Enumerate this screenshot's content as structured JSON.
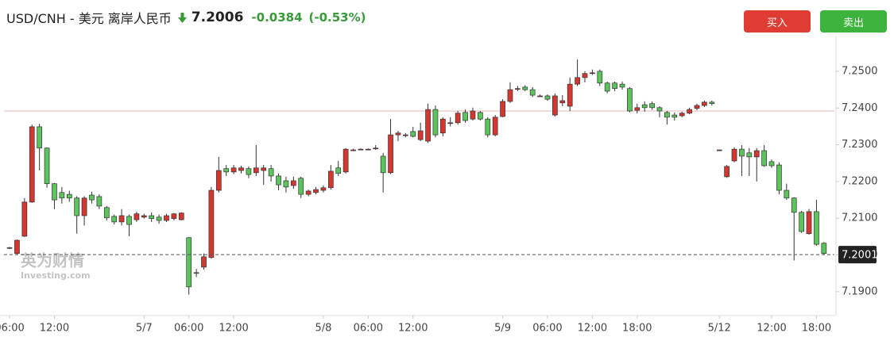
{
  "header": {
    "title": "USD/CNH - 美元 离岸人民币",
    "price": "7.2006",
    "change": "-0.0384",
    "change_pct": "(-0.53%)"
  },
  "buttons": [
    "买入",
    "卖出"
  ],
  "watermark": [
    "英为财情",
    "Investing.com"
  ],
  "chart_data": {
    "type": "candlestick",
    "up_color": "#d4372f",
    "down_color": "#5cc45c",
    "xlim": [
      -0.75,
      110.4
    ],
    "xticks": [
      {
        "value": 0,
        "label": "06:00"
      },
      {
        "value": 6,
        "label": "12:00"
      },
      {
        "value": 18,
        "label": "5/7"
      },
      {
        "value": 24,
        "label": "06:00"
      },
      {
        "value": 30,
        "label": "12:00"
      },
      {
        "value": 42,
        "label": "5/8"
      },
      {
        "value": 48,
        "label": "06:00"
      },
      {
        "value": 54,
        "label": "12:00"
      },
      {
        "value": 66,
        "label": "5/9"
      },
      {
        "value": 72,
        "label": "06:00"
      },
      {
        "value": 78,
        "label": "12:00"
      },
      {
        "value": 84,
        "label": "18:00"
      },
      {
        "value": 95,
        "label": "5/12"
      },
      {
        "value": 102,
        "label": "12:00"
      },
      {
        "value": 108,
        "label": "18:00"
      }
    ],
    "ylim": [
      7.1835,
      7.2597
    ],
    "yticks": [
      {
        "value": 7.19,
        "label": "7.1900"
      },
      {
        "value": 7.2,
        "label": "7.2000"
      },
      {
        "value": 7.21,
        "label": "7.2100"
      },
      {
        "value": 7.22,
        "label": "7.2200"
      },
      {
        "value": 7.23,
        "label": "7.2300"
      },
      {
        "value": 7.24,
        "label": "7.2400"
      },
      {
        "value": 7.25,
        "label": "7.2500"
      }
    ],
    "reference_line": 7.2392,
    "last_price": 7.2001,
    "open": [
      7.202,
      7.2004,
      7.2051,
      7.2144,
      7.2349,
      7.2291,
      7.2194,
      7.217,
      7.2165,
      7.2155,
      7.2107,
      7.2163,
      7.2159,
      7.2129,
      7.2105,
      7.209,
      7.2105,
      7.2096,
      7.2103,
      7.2107,
      7.2103,
      7.2094,
      7.2099,
      7.2096,
      7.2047,
      7.1952,
      7.1967,
      7.1993,
      7.2176,
      7.2235,
      7.2226,
      7.223,
      7.2235,
      7.2224,
      7.223,
      7.2235,
      7.2215,
      7.2202,
      7.2189,
      7.2209,
      7.2165,
      7.217,
      7.2176,
      7.2183,
      7.2237,
      7.2226,
      7.2286,
      7.2288,
      7.2288,
      7.2291,
      7.2269,
      7.2224,
      7.2327,
      7.2327,
      7.2336,
      7.2314,
      7.231,
      7.2396,
      7.2332,
      7.236,
      7.236,
      7.2388,
      7.237,
      7.2388,
      7.237,
      7.2327,
      7.2377,
      7.2418,
      7.2453,
      7.2457,
      7.245,
      7.2433,
      7.2433,
      7.2381,
      7.2414,
      7.2405,
      7.2465,
      7.2483,
      7.2496,
      7.25,
      7.2468,
      7.2468,
      7.2465,
      7.2453,
      7.2394,
      7.2409,
      7.2412,
      7.2401,
      7.2388,
      7.2381,
      7.2379,
      7.2386,
      7.2399,
      7.2407,
      7.2416,
      7.2286,
      7.2213,
      7.2256,
      7.2288,
      7.2278,
      7.2267,
      7.2284,
      7.2254,
      7.2245,
      7.2176,
      7.2155,
      7.2116,
      7.2058,
      7.2118,
      7.2032
    ],
    "high": [
      7.2022,
      7.2042,
      7.2155,
      7.2355,
      7.2357,
      7.2293,
      7.2196,
      7.2185,
      7.2175,
      7.216,
      7.216,
      7.2172,
      7.2165,
      7.2133,
      7.211,
      7.2125,
      7.211,
      7.2118,
      7.2112,
      7.2116,
      7.211,
      7.2112,
      7.2114,
      7.2116,
      7.2049,
      7.1962,
      7.2004,
      7.2185,
      7.2267,
      7.2245,
      7.2245,
      7.2243,
      7.2241,
      7.2299,
      7.2245,
      7.2245,
      7.2222,
      7.2213,
      7.2213,
      7.2213,
      7.2178,
      7.2185,
      7.2189,
      7.2245,
      7.2256,
      7.2291,
      7.2289,
      7.229,
      7.229,
      7.2299,
      7.2278,
      7.237,
      7.2338,
      7.2332,
      7.2349,
      7.236,
      7.2412,
      7.2407,
      7.2375,
      7.2375,
      7.2392,
      7.2396,
      7.2401,
      7.2392,
      7.2375,
      7.2381,
      7.2424,
      7.247,
      7.246,
      7.2462,
      7.2457,
      7.2437,
      7.2437,
      7.244,
      7.2435,
      7.2483,
      7.2532,
      7.25,
      7.2505,
      7.2505,
      7.2472,
      7.2472,
      7.2472,
      7.2457,
      7.2412,
      7.2418,
      7.2418,
      7.2405,
      7.2392,
      7.2388,
      7.239,
      7.2401,
      7.2412,
      7.242,
      7.242,
      7.2287,
      7.2245,
      7.2293,
      7.2299,
      7.2291,
      7.2291,
      7.2299,
      7.226,
      7.2252,
      7.2194,
      7.2157,
      7.212,
      7.2125,
      7.215,
      7.2035
    ],
    "low": [
      7.2016,
      7.2002,
      7.2049,
      7.2142,
      7.223,
      7.2183,
      7.2125,
      7.214,
      7.2145,
      7.2058,
      7.208,
      7.214,
      7.2125,
      7.2094,
      7.2083,
      7.208,
      7.2051,
      7.209,
      7.2099,
      7.209,
      7.2085,
      7.209,
      7.2094,
      7.2094,
      7.1892,
      7.194,
      7.196,
      7.199,
      7.217,
      7.2215,
      7.222,
      7.2222,
      7.2209,
      7.2215,
      7.2191,
      7.22,
      7.2176,
      7.217,
      7.218,
      7.2155,
      7.216,
      7.2165,
      7.217,
      7.2178,
      7.2215,
      7.2222,
      7.2283,
      7.2286,
      7.2286,
      7.2286,
      7.217,
      7.222,
      7.231,
      7.232,
      7.232,
      7.231,
      7.2305,
      7.232,
      7.2323,
      7.235,
      7.2355,
      7.236,
      7.2366,
      7.2366,
      7.232,
      7.2323,
      7.2375,
      7.2414,
      7.2446,
      7.2446,
      7.243,
      7.243,
      7.242,
      7.2377,
      7.2405,
      7.2392,
      7.246,
      7.247,
      7.249,
      7.246,
      7.244,
      7.2446,
      7.245,
      7.2388,
      7.2385,
      7.239,
      7.2395,
      7.2375,
      7.2355,
      7.2366,
      7.2375,
      7.2383,
      7.2394,
      7.2403,
      7.2407,
      7.2285,
      7.221,
      7.2252,
      7.2215,
      7.2215,
      7.22,
      7.224,
      7.2237,
      7.2165,
      7.215,
      7.1985,
      7.206,
      7.2055,
      7.2025,
      7.2001
    ],
    "close": [
      7.2018,
      7.204,
      7.2144,
      7.2349,
      7.2291,
      7.2194,
      7.215,
      7.2155,
      7.2155,
      7.2107,
      7.2155,
      7.215,
      7.2133,
      7.2101,
      7.209,
      7.2107,
      7.2083,
      7.2112,
      7.2107,
      7.2099,
      7.2094,
      7.2107,
      7.2112,
      7.2114,
      7.1913,
      7.195,
      7.1995,
      7.2176,
      7.223,
      7.2226,
      7.2237,
      7.2237,
      7.2219,
      7.2237,
      7.2237,
      7.2215,
      7.2191,
      7.2185,
      7.2202,
      7.2165,
      7.2174,
      7.2178,
      7.2183,
      7.2228,
      7.2222,
      7.2288,
      7.2286,
      7.2288,
      7.2288,
      7.2291,
      7.2224,
      7.2327,
      7.2332,
      7.2327,
      7.2323,
      7.2338,
      7.2396,
      7.2327,
      7.237,
      7.236,
      7.2386,
      7.2366,
      7.2392,
      7.237,
      7.2327,
      7.2375,
      7.2418,
      7.245,
      7.2453,
      7.245,
      7.2435,
      7.2433,
      7.2424,
      7.2433,
      7.242,
      7.2465,
      7.2483,
      7.2494,
      7.2496,
      7.2468,
      7.2446,
      7.2453,
      7.2457,
      7.2392,
      7.2401,
      7.2401,
      7.2401,
      7.2392,
      7.2375,
      7.2375,
      7.2386,
      7.2396,
      7.2407,
      7.2416,
      7.2412,
      7.2286,
      7.2241,
      7.2288,
      7.2269,
      7.2267,
      7.2284,
      7.2243,
      7.2243,
      7.2176,
      7.2155,
      7.2116,
      7.2064,
      7.2118,
      7.2029,
      7.2004
    ]
  }
}
